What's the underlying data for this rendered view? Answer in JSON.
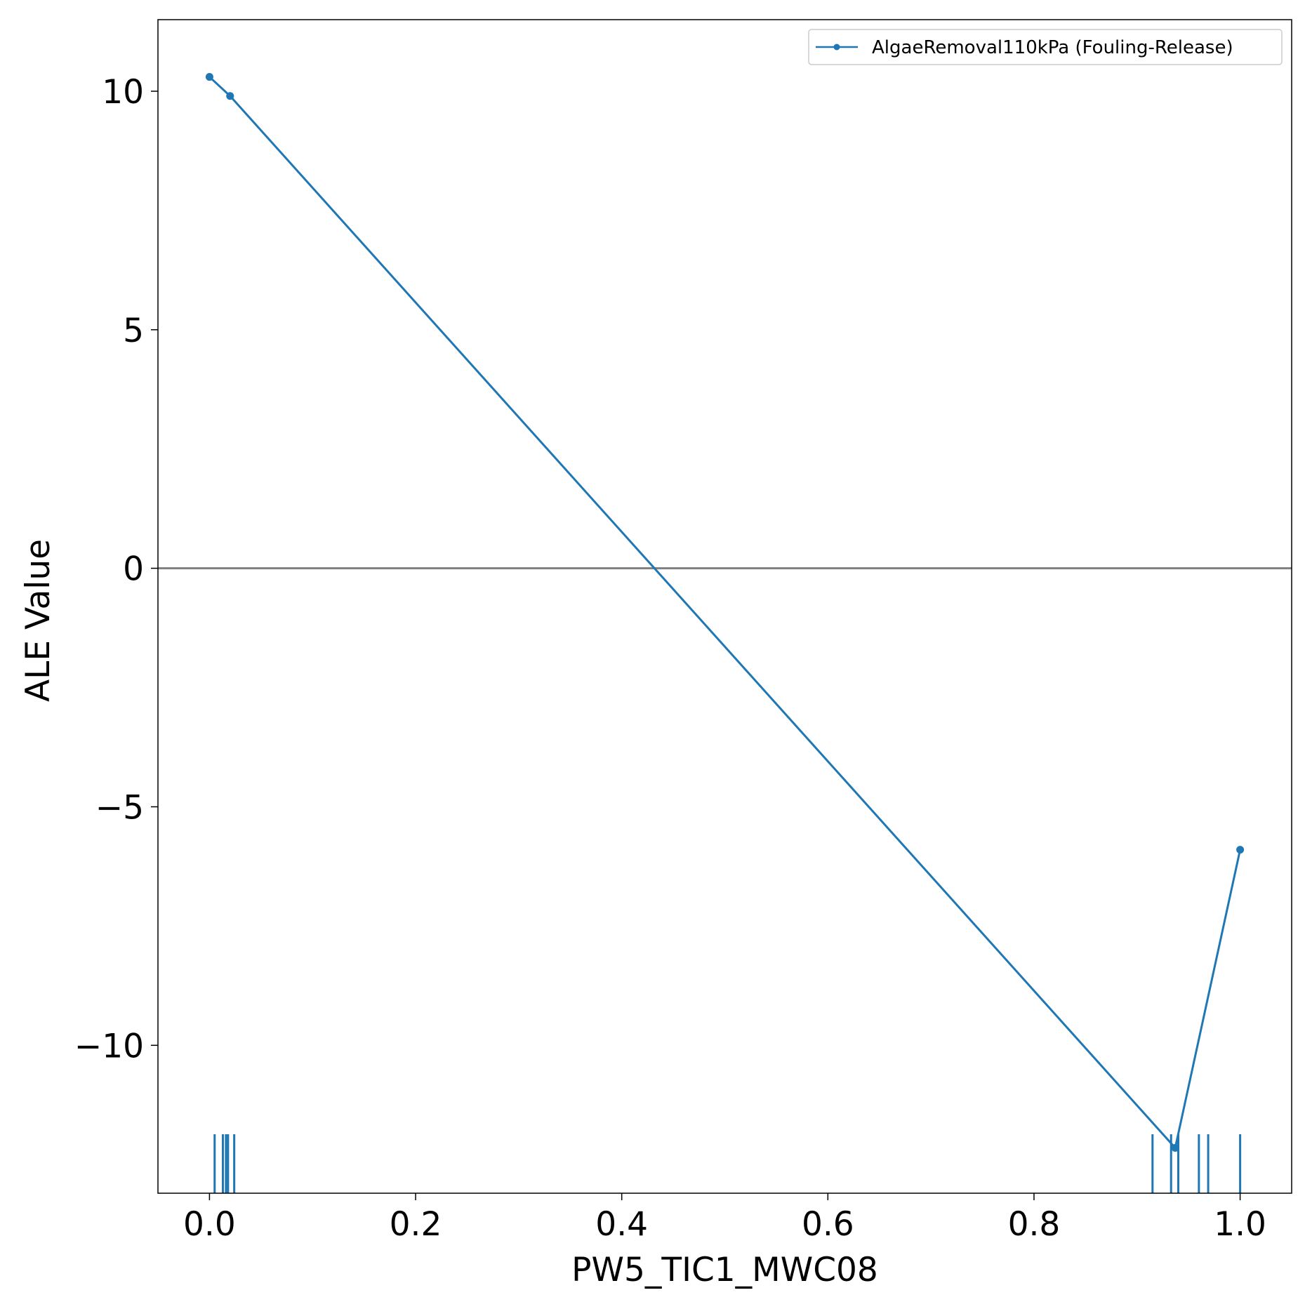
{
  "chart_data": {
    "type": "line",
    "title": "",
    "xlabel": "PW5_TIC1_MWC08",
    "ylabel": "ALE Value",
    "xlim": [
      -0.05,
      1.05
    ],
    "ylim": [
      -13.1,
      11.5
    ],
    "x_ticks": [
      0.0,
      0.2,
      0.4,
      0.6,
      0.8,
      1.0
    ],
    "x_tick_labels": [
      "0.0",
      "0.2",
      "0.4",
      "0.6",
      "0.8",
      "1.0"
    ],
    "y_ticks": [
      10,
      5,
      0,
      -5,
      -10
    ],
    "y_tick_labels": [
      "10",
      "5",
      "0",
      "−5",
      "−10"
    ],
    "reference_line": {
      "y": 0,
      "color": "#808080"
    },
    "grid": false,
    "legend": {
      "placement": "top-right"
    },
    "series": [
      {
        "name": "AlgaeRemoval110kPa (Fouling-Release)",
        "color": "#1f77b4",
        "marker": "dot",
        "x": [
          0.0,
          0.02,
          0.937,
          1.0
        ],
        "y": [
          10.3,
          9.9,
          -12.15,
          -5.9
        ]
      }
    ],
    "rug": {
      "color": "#1f77b4",
      "x": [
        0.005,
        0.013,
        0.016,
        0.018,
        0.024,
        0.915,
        0.933,
        0.94,
        0.96,
        0.969,
        1.0
      ]
    }
  }
}
